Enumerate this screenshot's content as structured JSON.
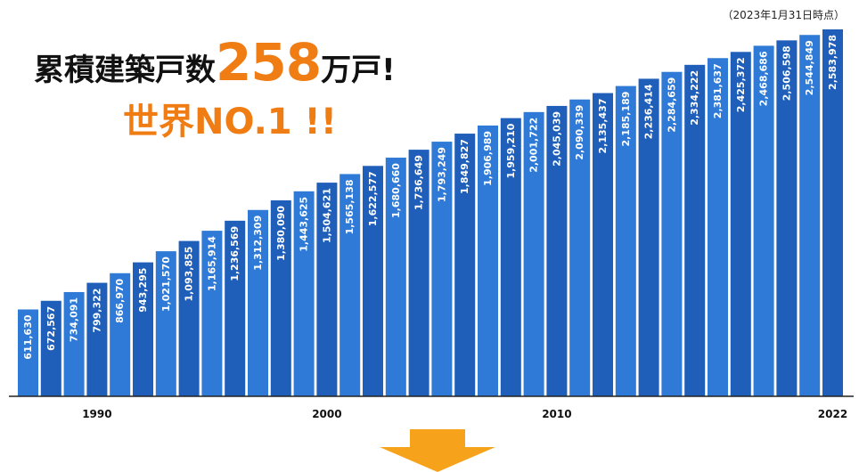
{
  "note": "（2023年1月31日時点）",
  "headline": {
    "lead": "累積建築戸数",
    "number": "258",
    "tail": "万戸!",
    "sub": "世界NO.1 !!"
  },
  "colors": {
    "bar_dark": "#1f5fb9",
    "bar_light": "#2e7ad6",
    "accent": "#f07c14",
    "arrow": "#f7a21b"
  },
  "icons": {
    "arrow": "down-arrow-icon"
  },
  "chart_data": {
    "type": "bar",
    "x": [
      1987,
      1988,
      1989,
      1990,
      1991,
      1992,
      1993,
      1994,
      1995,
      1996,
      1997,
      1998,
      1999,
      2000,
      2001,
      2002,
      2003,
      2004,
      2005,
      2006,
      2007,
      2008,
      2009,
      2010,
      2011,
      2012,
      2013,
      2014,
      2015,
      2016,
      2017,
      2018,
      2019,
      2020,
      2021,
      2022
    ],
    "values": [
      611630,
      672567,
      734091,
      799322,
      866970,
      943295,
      1021570,
      1093855,
      1165914,
      1236569,
      1312309,
      1380090,
      1443625,
      1504621,
      1565138,
      1622577,
      1680660,
      1736649,
      1793249,
      1849827,
      1906989,
      1959210,
      2001722,
      2045039,
      2090339,
      2135437,
      2185189,
      2236414,
      2284659,
      2334222,
      2381637,
      2425372,
      2468686,
      2506598,
      2544849,
      2583978
    ],
    "value_labels": [
      "611,630",
      "672,567",
      "734,091",
      "799,322",
      "866,970",
      "943,295",
      "1,021,570",
      "1,093,855",
      "1,165,914",
      "1,236,569",
      "1,312,309",
      "1,380,090",
      "1,443,625",
      "1,504,621",
      "1,565,138",
      "1,622,577",
      "1,680,660",
      "1,736,649",
      "1,793,249",
      "1,849,827",
      "1,906,989",
      "1,959,210",
      "2,001,722",
      "2,045,039",
      "2,090,339",
      "2,135,437",
      "2,185,189",
      "2,236,414",
      "2,284,659",
      "2,334,222",
      "2,381,637",
      "2,425,372",
      "2,468,686",
      "2,506,598",
      "2,544,849",
      "2,583,978"
    ],
    "tick_labels": [
      "1990",
      "2000",
      "2010",
      "2022"
    ],
    "tick_years": [
      1990,
      2000,
      2010,
      2022
    ],
    "title": "",
    "xlabel": "",
    "ylabel": "",
    "ylim": [
      0,
      2583978
    ],
    "grid": false,
    "legend": "none"
  }
}
